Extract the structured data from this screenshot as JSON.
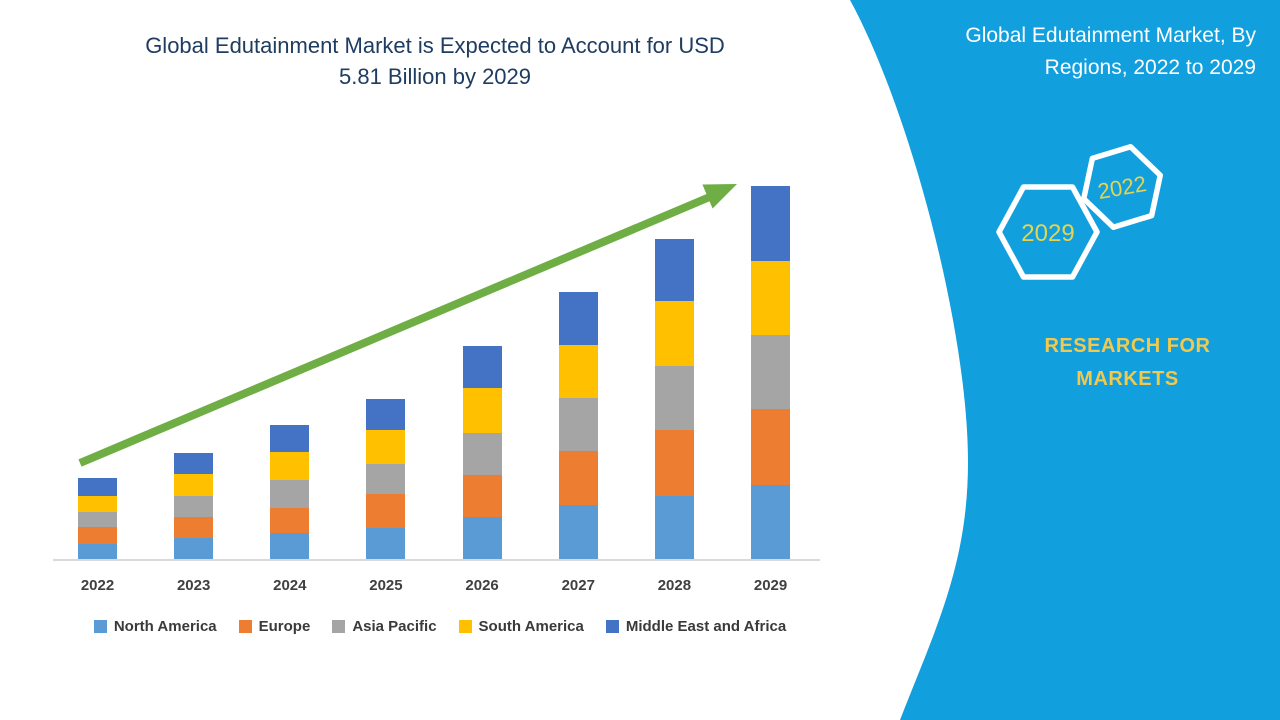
{
  "main": {
    "title_line1": "Global Edutainment Market is Expected to Account for USD",
    "title_line2": "5.81 Billion by 2029",
    "title_color": "#1F3C61"
  },
  "sidebar": {
    "title_line1": "Global Edutainment Market, By",
    "title_line2": "Regions, 2022 to 2029",
    "hexagons": [
      {
        "label": "2029"
      },
      {
        "label": "2022"
      }
    ],
    "brand_line1": "RESEARCH FOR",
    "brand_line2": "MARKETS",
    "bg_color": "#129FDE",
    "brand_text_color": "#F2C94C",
    "hexagon_year_color": "#E6D44F",
    "hexagon_border_color": "#ffffff"
  },
  "chart_data": {
    "type": "bar",
    "subtype": "stacked-vertical",
    "unit": "USD Billion",
    "categories": [
      "2022",
      "2023",
      "2024",
      "2025",
      "2026",
      "2027",
      "2028",
      "2029"
    ],
    "series": [
      {
        "name": "North America",
        "color": "#5B9BD5",
        "values": [
          0.25,
          0.34,
          0.42,
          0.5,
          0.67,
          0.85,
          0.99,
          1.17
        ]
      },
      {
        "name": "Europe",
        "color": "#ED7D31",
        "values": [
          0.26,
          0.33,
          0.39,
          0.53,
          0.65,
          0.84,
          1.03,
          1.18
        ]
      },
      {
        "name": "Asia Pacific",
        "color": "#A5A5A5",
        "values": [
          0.23,
          0.33,
          0.44,
          0.47,
          0.65,
          0.82,
          0.99,
          1.15
        ]
      },
      {
        "name": "South America",
        "color": "#FFC000",
        "values": [
          0.25,
          0.34,
          0.44,
          0.53,
          0.7,
          0.82,
          1.01,
          1.15
        ]
      },
      {
        "name": "Middle East and Africa",
        "color": "#4472C4",
        "values": [
          0.28,
          0.33,
          0.42,
          0.48,
          0.65,
          0.82,
          0.96,
          1.17
        ]
      }
    ],
    "totals": [
      1.27,
      1.67,
      2.11,
      2.51,
      3.32,
      4.15,
      4.98,
      5.82
    ],
    "highlight_total_2029": "5.81",
    "legend_position": "bottom",
    "grid": "off",
    "trend_arrow_color": "#6FAE44",
    "axis_line_color": "#D9D9D9",
    "tick_label_color": "#404040"
  }
}
